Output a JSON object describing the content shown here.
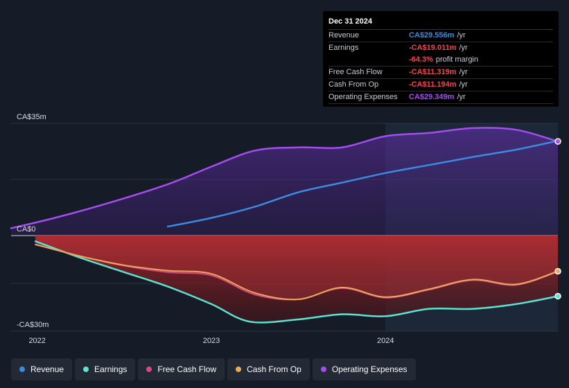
{
  "tooltip": {
    "date": "Dec 31 2024",
    "rows": [
      {
        "label": "Revenue",
        "value": "CA$29.556m",
        "unit": "/yr",
        "color": "#3b8be0"
      },
      {
        "label": "Earnings",
        "value": "-CA$19.011m",
        "unit": "/yr",
        "color": "#f0454d"
      },
      {
        "label": "",
        "value": "-64.3%",
        "unit": "profit margin",
        "color": "#f0454d"
      },
      {
        "label": "Free Cash Flow",
        "value": "-CA$11.319m",
        "unit": "/yr",
        "color": "#f0454d"
      },
      {
        "label": "Cash From Op",
        "value": "-CA$11.194m",
        "unit": "/yr",
        "color": "#f0454d"
      },
      {
        "label": "Operating Expenses",
        "value": "CA$29.349m",
        "unit": "/yr",
        "color": "#a54ef0"
      }
    ]
  },
  "legend": [
    {
      "label": "Revenue",
      "color": "#3b8be0"
    },
    {
      "label": "Earnings",
      "color": "#5ee3d0"
    },
    {
      "label": "Free Cash Flow",
      "color": "#d9487e"
    },
    {
      "label": "Cash From Op",
      "color": "#eba95a"
    },
    {
      "label": "Operating Expenses",
      "color": "#a54ef0"
    }
  ],
  "chart_data": {
    "type": "line",
    "title": "",
    "xlabel": "",
    "ylabel": "",
    "unit": "CA$m",
    "ylim": [
      -30,
      35
    ],
    "y_tick_labels": [
      "CA$35m",
      "CA$0",
      "-CA$30m"
    ],
    "y_ticks": [
      35,
      0,
      -30
    ],
    "x_tick_labels": [
      "2022",
      "2023",
      "2024"
    ],
    "x_ticks": [
      2022.0,
      2023.0,
      2024.0
    ],
    "xlim": [
      2021.85,
      2024.99
    ],
    "highlight_start": 2024.0,
    "series": [
      {
        "name": "Operating Expenses",
        "color": "#a54ef0",
        "x": [
          2021.85,
          2022.1,
          2022.4,
          2022.75,
          2023.0,
          2023.25,
          2023.5,
          2023.75,
          2024.0,
          2024.25,
          2024.5,
          2024.75,
          2024.99
        ],
        "y": [
          2.3,
          5.5,
          10.0,
          16.0,
          21.5,
          26.5,
          27.5,
          27.5,
          31.0,
          32.0,
          33.5,
          33.0,
          29.349
        ]
      },
      {
        "name": "Revenue",
        "color": "#3b8be0",
        "x": [
          2022.75,
          2023.0,
          2023.25,
          2023.5,
          2023.75,
          2024.0,
          2024.25,
          2024.5,
          2024.75,
          2024.99
        ],
        "y": [
          2.8,
          5.5,
          9.0,
          13.5,
          16.5,
          19.5,
          22.0,
          24.5,
          26.8,
          29.556
        ]
      },
      {
        "name": "Earnings",
        "color": "#5ee3d0",
        "x": [
          2021.99,
          2022.25,
          2022.5,
          2022.75,
          2023.0,
          2023.22,
          2023.5,
          2023.75,
          2024.0,
          2024.25,
          2024.5,
          2024.75,
          2024.99
        ],
        "y": [
          -1.8,
          -7.0,
          -11.5,
          -16.0,
          -21.5,
          -27.0,
          -26.3,
          -24.7,
          -25.3,
          -23.0,
          -23.0,
          -21.5,
          -19.011
        ]
      },
      {
        "name": "Free Cash Flow",
        "color": "#d9487e",
        "x": [
          2021.99,
          2022.25,
          2022.5,
          2022.75,
          2023.0,
          2023.25,
          2023.5,
          2023.75,
          2024.0,
          2024.25,
          2024.5,
          2024.75,
          2024.99
        ],
        "y": [
          -2.8,
          -6.5,
          -9.5,
          -11.5,
          -12.5,
          -18.5,
          -20.0,
          -16.5,
          -19.5,
          -17.0,
          -14.0,
          -15.5,
          -11.319
        ]
      },
      {
        "name": "Cash From Op",
        "color": "#eba95a",
        "x": [
          2021.99,
          2022.25,
          2022.5,
          2022.75,
          2023.0,
          2023.25,
          2023.5,
          2023.75,
          2024.0,
          2024.25,
          2024.5,
          2024.75,
          2024.99
        ],
        "y": [
          -2.8,
          -6.5,
          -9.3,
          -11.0,
          -12.0,
          -18.0,
          -20.0,
          -16.3,
          -19.3,
          -16.8,
          -13.8,
          -15.3,
          -11.194
        ]
      }
    ]
  }
}
